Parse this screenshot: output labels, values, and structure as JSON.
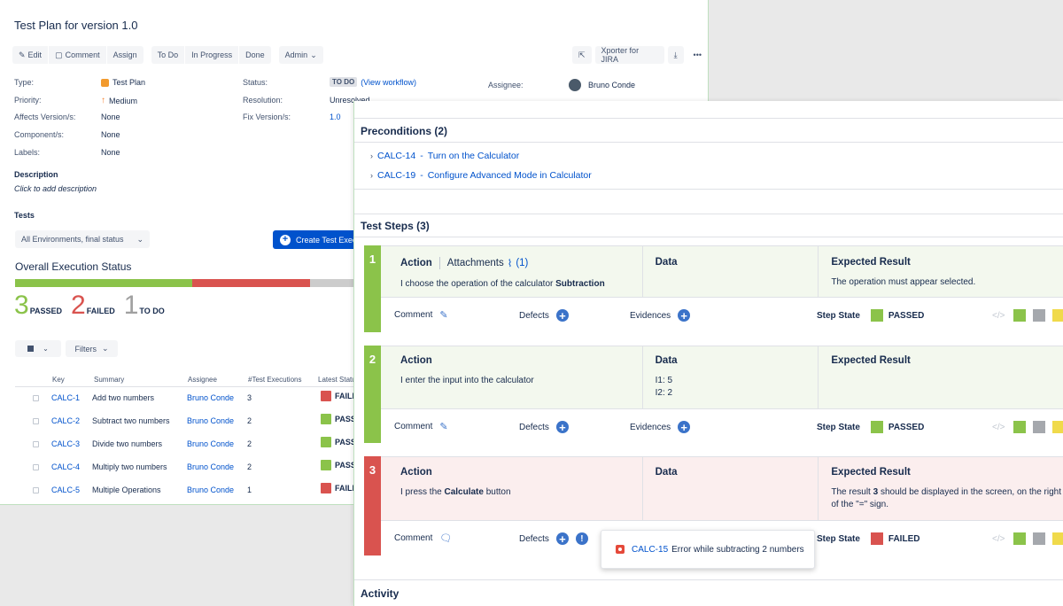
{
  "issue": {
    "title": "Test Plan for version 1.0"
  },
  "toolbar": {
    "edit": "Edit",
    "comment": "Comment",
    "assign": "Assign",
    "todo": "To Do",
    "in_progress": "In Progress",
    "done": "Done",
    "admin": "Admin",
    "xporter": "Xporter for JIRA"
  },
  "fields": {
    "type_label": "Type:",
    "type_value": "Test Plan",
    "priority_label": "Priority:",
    "priority_value": "Medium",
    "affects_label": "Affects Version/s:",
    "affects_value": "None",
    "component_label": "Component/s:",
    "component_value": "None",
    "labels_label": "Labels:",
    "labels_value": "None",
    "status_label": "Status:",
    "status_value": "TO DO",
    "view_workflow": "(View workflow)",
    "resolution_label": "Resolution:",
    "resolution_value": "Unresolved",
    "fix_label": "Fix Version/s:",
    "fix_value": "1.0",
    "assignee_label": "Assignee:",
    "assignee_value": "Bruno Conde"
  },
  "description": {
    "heading": "Description",
    "hint": "Click to add description"
  },
  "tests": {
    "heading": "Tests",
    "environment": "All Environments, final status",
    "create_button": "Create Test Execution",
    "overall_heading": "Overall Execution Status",
    "progress": {
      "passed": 3,
      "failed": 2,
      "todo": 1
    },
    "passed_count": "3",
    "passed_label": "PASSED",
    "failed_count": "2",
    "failed_label": "FAILED",
    "todo_count": "1",
    "todo_label": "TO DO",
    "filters": "Filters",
    "columns": [
      "Key",
      "Summary",
      "Assignee",
      "#Test Executions",
      "Latest Status"
    ],
    "rows": [
      {
        "key": "CALC-1",
        "summary": "Add two numbers",
        "assignee": "Bruno Conde",
        "executions": "3",
        "status": "FAILED",
        "color": "#d9534f"
      },
      {
        "key": "CALC-2",
        "summary": "Subtract two numbers",
        "assignee": "Bruno Conde",
        "executions": "2",
        "status": "PASSED",
        "color": "#8bc34a"
      },
      {
        "key": "CALC-3",
        "summary": "Divide two numbers",
        "assignee": "Bruno Conde",
        "executions": "2",
        "status": "PASSED",
        "color": "#8bc34a"
      },
      {
        "key": "CALC-4",
        "summary": "Multiply two numbers",
        "assignee": "Bruno Conde",
        "executions": "2",
        "status": "PASSED",
        "color": "#8bc34a"
      },
      {
        "key": "CALC-5",
        "summary": "Multiple Operations",
        "assignee": "Bruno Conde",
        "executions": "1",
        "status": "FAILED",
        "color": "#d9534f"
      }
    ]
  },
  "run": {
    "preconditions_heading": "Preconditions (2)",
    "preconditions": [
      {
        "key": "CALC-14",
        "title": "Turn on the Calculator"
      },
      {
        "key": "CALC-19",
        "title": "Configure Advanced Mode in Calculator"
      }
    ],
    "steps_heading": "Test Steps (3)",
    "labels": {
      "action": "Action",
      "attachments": "Attachments",
      "attachments_count": "(1)",
      "data": "Data",
      "expected": "Expected Result",
      "comment": "Comment",
      "defects": "Defects",
      "evidences": "Evidences",
      "step_state": "Step State"
    },
    "steps": [
      {
        "num": "1",
        "action_pre": "I choose the operation of the calculator ",
        "action_bold": "Subtraction",
        "action_post": "",
        "data_line1": "",
        "data_line2": "",
        "expected_pre": "The operation must appear selected.",
        "expected_bold": "",
        "expected_post": "",
        "expected_line2": "",
        "state": "PASSED"
      },
      {
        "num": "2",
        "action_pre": "I enter the input into the calculator",
        "action_bold": "",
        "action_post": "",
        "data_line1": "I1: 5",
        "data_line2": "I2: 2",
        "expected_pre": "",
        "expected_bold": "",
        "expected_post": "",
        "expected_line2": "",
        "state": "PASSED"
      },
      {
        "num": "3",
        "action_pre": "I press the ",
        "action_bold": "Calculate",
        "action_post": " button",
        "data_line1": "",
        "data_line2": "",
        "expected_pre": "The result ",
        "expected_bold": "3",
        "expected_post": " should be displayed in the screen, on the right",
        "expected_line2": "of the \"=\" sign.",
        "state": "FAILED"
      }
    ],
    "defect_popup": {
      "key": "CALC-15",
      "title": "Error while subtracting 2 numbers"
    },
    "activity_heading": "Activity"
  },
  "colors": {
    "passed": "#8bc34a",
    "failed": "#d9534f",
    "todo": "#9e9e9e",
    "accent": "#0052cc",
    "swatches": [
      "#8bc34a",
      "#a5a8ad",
      "#f0da4b",
      "#d9534f",
      "#1d63e6",
      "#e91ee9"
    ]
  }
}
